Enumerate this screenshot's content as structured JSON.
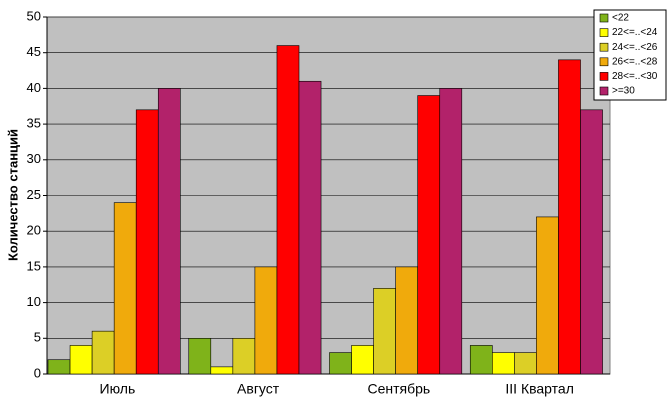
{
  "chart_data": {
    "type": "bar",
    "y_label": "Количество станций",
    "categories": [
      "Июль",
      "Август",
      "Сентябрь",
      "III Квартал"
    ],
    "series": [
      {
        "name": "<22",
        "color": "#7fb31a",
        "values": [
          2,
          5,
          3,
          4
        ]
      },
      {
        "name": "22<=..<24",
        "color": "#ffff00",
        "values": [
          4,
          1,
          4,
          3
        ]
      },
      {
        "name": "24<=..<26",
        "color": "#dccf26",
        "values": [
          6,
          5,
          12,
          3
        ]
      },
      {
        "name": "26<=..<28",
        "color": "#f0aa0c",
        "values": [
          24,
          15,
          15,
          22
        ]
      },
      {
        "name": "28<=..<30",
        "color": "#ff0000",
        "values": [
          37,
          46,
          39,
          44
        ]
      },
      {
        "name": ">=30",
        "color": "#b2226a",
        "values": [
          40,
          41,
          40,
          37
        ]
      }
    ],
    "ylim": [
      0,
      50
    ],
    "yticks": [
      0,
      5,
      10,
      15,
      20,
      25,
      30,
      35,
      40,
      45,
      50
    ],
    "grid": true,
    "legend": "top-right",
    "plot_background": "#c0c0c0"
  }
}
